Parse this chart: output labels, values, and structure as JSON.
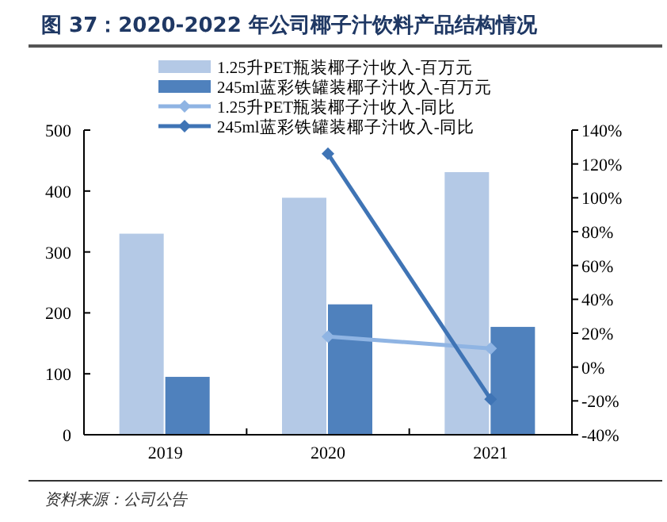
{
  "chart_data": {
    "type": "bar",
    "title": "图 37：2020-2022 年公司椰子汁饮料产品结构情况",
    "categories": [
      "2019",
      "2020",
      "2021"
    ],
    "series": [
      {
        "name": "1.25升PET瓶装椰子汁收入-百万元",
        "color": "#b4c9e6",
        "values": [
          330,
          389,
          431
        ]
      },
      {
        "name": "245ml蓝彩铁罐装椰子汁收入-百万元",
        "color": "#4f81bd",
        "values": [
          95,
          214,
          177
        ]
      },
      {
        "name": "1.25升PET瓶装椰子汁收入-同比",
        "type": "line",
        "axis": "y2",
        "marker": "diamond",
        "color": "#8fb4e3",
        "values": [
          null,
          18,
          11
        ]
      },
      {
        "name": "245ml蓝彩铁罐装椰子汁收入-同比",
        "type": "line",
        "axis": "y2",
        "marker": "diamond",
        "color": "#3f74b5",
        "values": [
          null,
          126,
          -19
        ]
      }
    ],
    "ylim": [
      0,
      500
    ],
    "yticks": [
      0,
      100,
      200,
      300,
      400,
      500
    ],
    "y2lim": [
      -40,
      140
    ],
    "y2ticks": [
      {
        "value": -40,
        "label": "-40%"
      },
      {
        "value": -20,
        "label": "-20%"
      },
      {
        "value": 0,
        "label": "0%"
      },
      {
        "value": 20,
        "label": "20%"
      },
      {
        "value": 40,
        "label": "40%"
      },
      {
        "value": 60,
        "label": "60%"
      },
      {
        "value": 80,
        "label": "80%"
      },
      {
        "value": 100,
        "label": "100%"
      },
      {
        "value": 120,
        "label": "120%"
      },
      {
        "value": 140,
        "label": "140%"
      }
    ],
    "legend": "top",
    "annotations": [
      "资料来源：公司公告"
    ]
  }
}
